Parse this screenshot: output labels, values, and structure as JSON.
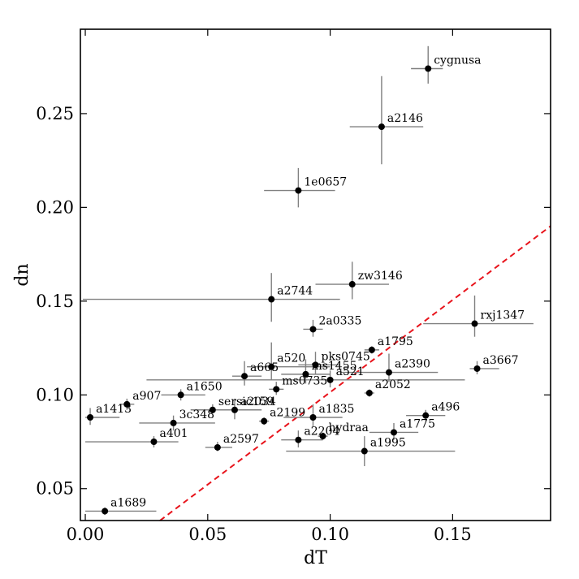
{
  "chart_data": {
    "type": "scatter",
    "xlabel": "dT",
    "ylabel": "dn",
    "xlim": [
      -0.002,
      0.19
    ],
    "ylim": [
      0.033,
      0.295
    ],
    "xticks": [
      "0.00",
      "0.05",
      "0.10",
      "0.15"
    ],
    "yticks": [
      "0.05",
      "0.10",
      "0.15",
      "0.20",
      "0.25"
    ],
    "grid": false,
    "reference_line": {
      "style": "dashed",
      "color": "#e8141c",
      "points": [
        [
          0.0305,
          0.033
        ],
        [
          0.19,
          0.19
        ]
      ]
    },
    "colors": {
      "points": "#000000",
      "errorbars": "#808080",
      "dashed_line": "#e8141c"
    },
    "points": [
      {
        "name": "cygnusa",
        "x": 0.14,
        "y": 0.274,
        "xerr": [
          0.007,
          0.006
        ],
        "yerr": [
          0.008,
          0.012
        ]
      },
      {
        "name": "a2146",
        "x": 0.121,
        "y": 0.243,
        "xerr": [
          0.013,
          0.017
        ],
        "yerr": [
          0.02,
          0.027
        ]
      },
      {
        "name": "1e0657",
        "x": 0.087,
        "y": 0.209,
        "xerr": [
          0.014,
          0.015
        ],
        "yerr": [
          0.009,
          0.012
        ]
      },
      {
        "name": "zw3146",
        "x": 0.109,
        "y": 0.159,
        "xerr": [
          0.015,
          0.015
        ],
        "yerr": [
          0.008,
          0.012
        ]
      },
      {
        "name": "a2744",
        "x": 0.076,
        "y": 0.151,
        "xerr": [
          0.077,
          0.028
        ],
        "yerr": [
          0.012,
          0.014
        ]
      },
      {
        "name": "rxj1347",
        "x": 0.159,
        "y": 0.138,
        "xerr": [
          0.021,
          0.024
        ],
        "yerr": [
          0.007,
          0.015
        ]
      },
      {
        "name": "2a0335",
        "x": 0.093,
        "y": 0.135,
        "xerr": [
          0.004,
          0.004
        ],
        "yerr": [
          0.004,
          0.005
        ]
      },
      {
        "name": "a1795",
        "x": 0.117,
        "y": 0.124,
        "xerr": [
          0.003,
          0.003
        ],
        "yerr": [
          0.002,
          0.002
        ]
      },
      {
        "name": "a520",
        "x": 0.076,
        "y": 0.115,
        "xerr": [
          0.01,
          0.024
        ],
        "yerr": [
          0.007,
          0.013
        ]
      },
      {
        "name": "pks0745",
        "x": 0.094,
        "y": 0.116,
        "xerr": [
          0.007,
          0.01
        ],
        "yerr": [
          0.005,
          0.007
        ]
      },
      {
        "name": "ms1455",
        "x": 0.09,
        "y": 0.111,
        "xerr": [
          0.01,
          0.01
        ],
        "yerr": [
          0.005,
          0.008
        ]
      },
      {
        "name": "a665",
        "x": 0.065,
        "y": 0.11,
        "xerr": [
          0.005,
          0.007
        ],
        "yerr": [
          0.005,
          0.008
        ]
      },
      {
        "name": "a2390",
        "x": 0.124,
        "y": 0.112,
        "xerr": [
          0.02,
          0.02
        ],
        "yerr": [
          0.005,
          0.01
        ]
      },
      {
        "name": "a3667",
        "x": 0.16,
        "y": 0.114,
        "xerr": [
          0.003,
          0.009
        ],
        "yerr": [
          0.003,
          0.004
        ]
      },
      {
        "name": "a521",
        "x": 0.1,
        "y": 0.108,
        "xerr": [
          0.075,
          0.055
        ],
        "yerr": [
          0.004,
          0.005
        ]
      },
      {
        "name": "ms0735",
        "x": 0.078,
        "y": 0.103,
        "xerr": [
          0.003,
          0.003
        ],
        "yerr": [
          0.003,
          0.004
        ]
      },
      {
        "name": "a2052",
        "x": 0.116,
        "y": 0.101,
        "xerr": [
          0.002,
          0.002
        ],
        "yerr": [
          0.002,
          0.002
        ]
      },
      {
        "name": "a1650",
        "x": 0.039,
        "y": 0.1,
        "xerr": [
          0.008,
          0.01
        ],
        "yerr": [
          0.003,
          0.003
        ]
      },
      {
        "name": "a907",
        "x": 0.017,
        "y": 0.095,
        "xerr": [
          0.003,
          0.003
        ],
        "yerr": [
          0.003,
          0.003
        ]
      },
      {
        "name": "a1413",
        "x": 0.002,
        "y": 0.088,
        "xerr": [
          0.002,
          0.012
        ],
        "yerr": [
          0.004,
          0.005
        ]
      },
      {
        "name": "sersic159",
        "x": 0.052,
        "y": 0.092,
        "xerr": [
          0.003,
          0.006
        ],
        "yerr": [
          0.002,
          0.003
        ]
      },
      {
        "name": "a2034",
        "x": 0.061,
        "y": 0.092,
        "xerr": [
          0.018,
          0.011
        ],
        "yerr": [
          0.005,
          0.006
        ]
      },
      {
        "name": "3c348",
        "x": 0.036,
        "y": 0.085,
        "xerr": [
          0.014,
          0.017
        ],
        "yerr": [
          0.004,
          0.004
        ]
      },
      {
        "name": "a2199",
        "x": 0.073,
        "y": 0.086,
        "xerr": [
          0.002,
          0.002
        ],
        "yerr": [
          0.002,
          0.002
        ]
      },
      {
        "name": "a1835",
        "x": 0.093,
        "y": 0.088,
        "xerr": [
          0.012,
          0.012
        ],
        "yerr": [
          0.005,
          0.007
        ]
      },
      {
        "name": "a496",
        "x": 0.139,
        "y": 0.089,
        "xerr": [
          0.008,
          0.008
        ],
        "yerr": [
          0.003,
          0.003
        ]
      },
      {
        "name": "a1775",
        "x": 0.126,
        "y": 0.08,
        "xerr": [
          0.01,
          0.01
        ],
        "yerr": [
          0.004,
          0.005
        ]
      },
      {
        "name": "a2204",
        "x": 0.087,
        "y": 0.076,
        "xerr": [
          0.007,
          0.01
        ],
        "yerr": [
          0.004,
          0.005
        ]
      },
      {
        "name": "hydraa",
        "x": 0.097,
        "y": 0.078,
        "xerr": [
          0.002,
          0.002
        ],
        "yerr": [
          0.002,
          0.002
        ]
      },
      {
        "name": "a401",
        "x": 0.028,
        "y": 0.075,
        "xerr": [
          0.028,
          0.01
        ],
        "yerr": [
          0.003,
          0.003
        ]
      },
      {
        "name": "a2597",
        "x": 0.054,
        "y": 0.072,
        "xerr": [
          0.005,
          0.006
        ],
        "yerr": [
          0.002,
          0.003
        ]
      },
      {
        "name": "a1995",
        "x": 0.114,
        "y": 0.07,
        "xerr": [
          0.032,
          0.037
        ],
        "yerr": [
          0.008,
          0.008
        ]
      },
      {
        "name": "a1689",
        "x": 0.008,
        "y": 0.038,
        "xerr": [
          0.008,
          0.021
        ],
        "yerr": [
          0.002,
          0.002
        ]
      }
    ]
  }
}
